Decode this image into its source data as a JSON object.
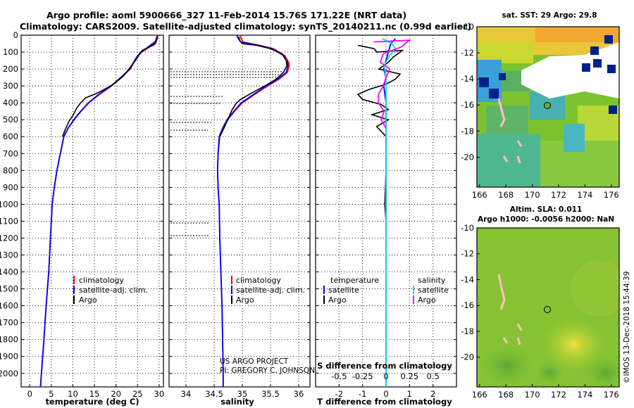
{
  "title_line1": "Argo profile: aoml 5900666_327 11-Feb-2014 15.76S 171.22E (NRT data)",
  "title_line2": "Climatology: CARS2009. Satellite-adjusted climatology: synTS_20140211.nc (0.99d earlier)",
  "project_note_1": "US ARGO PROJECT",
  "project_note_2": "PI: GREGORY C. JOHNSON",
  "footer_stamp": "©IMOS 13-Dec-2018 15:44:39",
  "colors": {
    "climatology": "#ff0000",
    "satellite": "#0000ff",
    "argo": "#000000",
    "sat_salinity": "#00e0e0",
    "argo_salinity": "#ff00ff"
  },
  "chart_data": [
    {
      "type": "line",
      "panel": "temperature",
      "xlabel": "temperature (deg C)",
      "ylabel": "",
      "xlim": [
        -2,
        31
      ],
      "ylim": [
        2080,
        0
      ],
      "xticks": [
        "0",
        "5",
        "10",
        "15",
        "20",
        "25",
        "30"
      ],
      "yticks": [
        "0",
        "100",
        "200",
        "300",
        "400",
        "500",
        "600",
        "700",
        "800",
        "900",
        "1000",
        "1100",
        "1200",
        "1300",
        "1400",
        "1500",
        "1600",
        "1700",
        "1800",
        "1900",
        "2000"
      ],
      "legend": {
        "placement": "lower-middle",
        "entries": [
          "climatology",
          "satellite-adj. clim.",
          "Argo"
        ]
      },
      "series": [
        {
          "name": "climatology",
          "points": [
            [
              29.7,
              0
            ],
            [
              29.6,
              20
            ],
            [
              29.3,
              40
            ],
            [
              28.6,
              55
            ],
            [
              27.5,
              75
            ],
            [
              26.0,
              100
            ],
            [
              25.0,
              125
            ],
            [
              24.4,
              150
            ],
            [
              23.3,
              200
            ],
            [
              21.2,
              250
            ],
            [
              19.0,
              300
            ],
            [
              16.2,
              350
            ],
            [
              13.7,
              400
            ],
            [
              11.9,
              450
            ],
            [
              10.3,
              500
            ],
            [
              8.9,
              550
            ],
            [
              7.9,
              600
            ],
            [
              7.1,
              700
            ],
            [
              6.3,
              800
            ],
            [
              5.7,
              900
            ],
            [
              5.2,
              1000
            ],
            [
              4.8,
              1200
            ],
            [
              4.4,
              1400
            ],
            [
              3.8,
              1600
            ],
            [
              3.3,
              1800
            ],
            [
              2.7,
              2000
            ],
            [
              2.5,
              2080
            ]
          ]
        },
        {
          "name": "satellite-adj. clim.",
          "points": [
            [
              29.6,
              0
            ],
            [
              29.5,
              20
            ],
            [
              29.0,
              40
            ],
            [
              28.2,
              55
            ],
            [
              27.2,
              75
            ],
            [
              25.8,
              100
            ],
            [
              24.9,
              125
            ],
            [
              24.3,
              150
            ],
            [
              23.2,
              200
            ],
            [
              21.1,
              250
            ],
            [
              18.9,
              300
            ],
            [
              16.0,
              350
            ],
            [
              13.6,
              400
            ],
            [
              11.8,
              450
            ],
            [
              10.2,
              500
            ],
            [
              8.9,
              550
            ],
            [
              7.9,
              600
            ],
            [
              7.1,
              700
            ],
            [
              6.3,
              800
            ],
            [
              5.7,
              900
            ],
            [
              5.2,
              1000
            ],
            [
              4.8,
              1200
            ],
            [
              4.4,
              1400
            ],
            [
              3.8,
              1600
            ],
            [
              3.3,
              1800
            ],
            [
              2.7,
              2000
            ],
            [
              2.5,
              2080
            ]
          ]
        },
        {
          "name": "Argo",
          "points": [
            [
              29.4,
              10
            ],
            [
              29.3,
              30
            ],
            [
              29.1,
              50
            ],
            [
              28.6,
              60
            ],
            [
              27.7,
              70
            ],
            [
              26.1,
              90
            ],
            [
              25.5,
              110
            ],
            [
              24.8,
              140
            ],
            [
              23.9,
              170
            ],
            [
              23.0,
              200
            ],
            [
              21.8,
              240
            ],
            [
              20.4,
              270
            ],
            [
              18.8,
              300
            ],
            [
              16.6,
              330
            ],
            [
              15.0,
              350
            ],
            [
              13.0,
              370
            ],
            [
              11.8,
              400
            ],
            [
              10.9,
              430
            ],
            [
              10.1,
              470
            ],
            [
              9.1,
              510
            ],
            [
              8.2,
              560
            ],
            [
              7.6,
              600
            ]
          ]
        }
      ]
    },
    {
      "type": "line",
      "panel": "salinity",
      "xlabel": "salinity",
      "ylabel": "",
      "xlim": [
        33.7,
        36.2
      ],
      "ylim": [
        2080,
        0
      ],
      "xticks": [
        "34",
        "34.5",
        "35",
        "35.5",
        "36"
      ],
      "legend": {
        "placement": "lower-middle",
        "entries": [
          "climatology",
          "satellite-adj. clim.",
          "Argo"
        ]
      },
      "series": [
        {
          "name": "climatology",
          "points": [
            [
              34.96,
              0
            ],
            [
              34.98,
              20
            ],
            [
              35.01,
              40
            ],
            [
              35.3,
              60
            ],
            [
              35.55,
              80
            ],
            [
              35.75,
              120
            ],
            [
              35.82,
              160
            ],
            [
              35.83,
              180
            ],
            [
              35.8,
              220
            ],
            [
              35.65,
              260
            ],
            [
              35.45,
              300
            ],
            [
              35.22,
              350
            ],
            [
              35.0,
              400
            ],
            [
              34.86,
              450
            ],
            [
              34.74,
              500
            ],
            [
              34.66,
              550
            ],
            [
              34.6,
              600
            ],
            [
              34.57,
              700
            ],
            [
              34.56,
              800
            ],
            [
              34.57,
              900
            ],
            [
              34.59,
              1000
            ],
            [
              34.6,
              1200
            ],
            [
              34.62,
              1400
            ],
            [
              34.64,
              1600
            ],
            [
              34.65,
              1800
            ],
            [
              34.66,
              2000
            ],
            [
              34.66,
              2080
            ]
          ]
        },
        {
          "name": "satellite-adj. clim.",
          "points": [
            [
              34.9,
              0
            ],
            [
              34.93,
              20
            ],
            [
              34.97,
              40
            ],
            [
              35.28,
              60
            ],
            [
              35.53,
              80
            ],
            [
              35.73,
              120
            ],
            [
              35.8,
              160
            ],
            [
              35.81,
              180
            ],
            [
              35.78,
              220
            ],
            [
              35.63,
              260
            ],
            [
              35.43,
              300
            ],
            [
              35.2,
              350
            ],
            [
              34.98,
              400
            ],
            [
              34.85,
              450
            ],
            [
              34.73,
              500
            ],
            [
              34.65,
              550
            ],
            [
              34.59,
              600
            ],
            [
              34.57,
              700
            ],
            [
              34.56,
              800
            ],
            [
              34.57,
              900
            ],
            [
              34.59,
              1000
            ],
            [
              34.6,
              1200
            ],
            [
              34.62,
              1400
            ],
            [
              34.64,
              1600
            ],
            [
              34.65,
              1800
            ],
            [
              34.66,
              2000
            ],
            [
              34.66,
              2080
            ]
          ]
        },
        {
          "name": "Argo",
          "points": [
            [
              34.94,
              10
            ],
            [
              34.95,
              30
            ],
            [
              35.0,
              50
            ],
            [
              35.25,
              60
            ],
            [
              35.5,
              80
            ],
            [
              35.7,
              110
            ],
            [
              35.78,
              150
            ],
            [
              35.79,
              180
            ],
            [
              35.73,
              220
            ],
            [
              35.6,
              260
            ],
            [
              35.4,
              300
            ],
            [
              35.15,
              345
            ],
            [
              34.97,
              380
            ],
            [
              34.9,
              400
            ],
            [
              34.82,
              440
            ],
            [
              34.74,
              500
            ],
            [
              34.66,
              560
            ],
            [
              34.6,
              600
            ]
          ]
        }
      ]
    },
    {
      "type": "line",
      "panel": "difference",
      "xlabel": "T difference from climatology",
      "xlabel_top": "S difference from climatology",
      "ylabel": "",
      "xlim": [
        -3,
        3
      ],
      "ylim": [
        2080,
        0
      ],
      "xticks": [
        "-2",
        "-1",
        "0",
        "1",
        "2"
      ],
      "xticks_top": [
        "-0.5",
        "-0.25",
        "0",
        "0.25",
        "0.5"
      ],
      "legend": {
        "placement": "lower-middle",
        "headers": [
          "temperature",
          "salinity"
        ],
        "entries": [
          "satellite",
          "Argo",
          "satellite",
          "Argo"
        ]
      },
      "series": [
        {
          "name": "temperature satellite",
          "points": [
            [
              0.4,
              20
            ],
            [
              0.2,
              50
            ],
            [
              0.1,
              100
            ],
            [
              0.0,
              150
            ],
            [
              -0.1,
              200
            ],
            [
              0.0,
              250
            ],
            [
              -0.1,
              300
            ],
            [
              0.0,
              400
            ],
            [
              0.0,
              500
            ],
            [
              0.0,
              700
            ],
            [
              0.0,
              1000
            ],
            [
              0.0,
              1500
            ],
            [
              0.0,
              2000
            ],
            [
              0.0,
              2080
            ]
          ]
        },
        {
          "name": "temperature Argo",
          "points": [
            [
              -1.2,
              60
            ],
            [
              -0.5,
              80
            ],
            [
              -0.4,
              100
            ],
            [
              0.7,
              90
            ],
            [
              0.3,
              130
            ],
            [
              0.1,
              160
            ],
            [
              -0.3,
              200
            ],
            [
              0.6,
              230
            ],
            [
              0.4,
              260
            ],
            [
              0.0,
              290
            ],
            [
              -0.7,
              320
            ],
            [
              -1.2,
              350
            ],
            [
              -1.0,
              380
            ],
            [
              -0.2,
              410
            ],
            [
              0.1,
              440
            ],
            [
              -0.6,
              470
            ],
            [
              0.1,
              500
            ],
            [
              -0.4,
              540
            ],
            [
              0.0,
              600
            ],
            [
              0.0,
              800
            ],
            [
              -0.05,
              1000
            ],
            [
              0.0,
              1100
            ]
          ]
        },
        {
          "name": "salinity satellite",
          "points": [
            [
              -0.04,
              20
            ],
            [
              0.06,
              50
            ],
            [
              0.1,
              80
            ],
            [
              0.04,
              120
            ],
            [
              -0.02,
              180
            ],
            [
              0.0,
              250
            ],
            [
              0.0,
              400
            ],
            [
              0.0,
              700
            ],
            [
              0.0,
              1000
            ],
            [
              0.0,
              2080
            ]
          ]
        },
        {
          "name": "salinity Argo",
          "points": [
            [
              -0.13,
              40
            ],
            [
              0.25,
              30
            ],
            [
              0.16,
              70
            ],
            [
              -0.03,
              110
            ],
            [
              -0.06,
              160
            ],
            [
              0.04,
              200
            ],
            [
              0.0,
              250
            ],
            [
              -0.03,
              300
            ],
            [
              -0.08,
              350
            ],
            [
              -0.08,
              400
            ],
            [
              -0.02,
              450
            ],
            [
              -0.05,
              500
            ],
            [
              0.0,
              550
            ]
          ]
        }
      ]
    },
    {
      "type": "heatmap",
      "panel": "sst-map",
      "title": "sat. SST: 29 Argo: 29.8",
      "xticks": [
        "166",
        "168",
        "170",
        "172",
        "174",
        "176"
      ],
      "yticks": [
        "-10",
        "-12",
        "-14",
        "-16",
        "-18",
        "-20"
      ],
      "xlim": [
        165.8,
        176.6
      ],
      "ylim": [
        -22.3,
        -10.0
      ],
      "float_position": {
        "lon": 171.22,
        "lat": -15.76
      }
    },
    {
      "type": "heatmap",
      "panel": "sla-map",
      "title": "Altim. SLA: 0.011",
      "subtitle": "Argo h1000: -0.0056 h2000: NaN",
      "xticks": [
        "166",
        "168",
        "170",
        "172",
        "174",
        "176"
      ],
      "yticks": [
        "-10",
        "-12",
        "-14",
        "-16",
        "-18",
        "-20"
      ],
      "xlim": [
        165.8,
        176.6
      ],
      "ylim": [
        -22.3,
        -10.0
      ],
      "float_position": {
        "lon": 171.22,
        "lat": -15.76
      }
    }
  ]
}
